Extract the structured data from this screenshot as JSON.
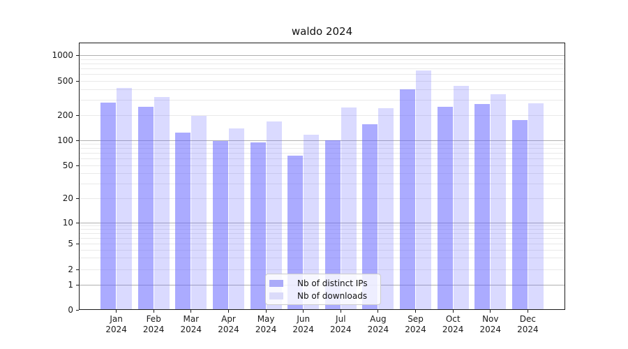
{
  "chart_data": {
    "type": "bar",
    "title": "waldo 2024",
    "categories": [
      "Jan",
      "Feb",
      "Mar",
      "Apr",
      "May",
      "Jun",
      "Jul",
      "Aug",
      "Sep",
      "Oct",
      "Nov",
      "Dec"
    ],
    "category_year": "2024",
    "series": [
      {
        "name": "Nb of distinct IPs",
        "color": "#aaaaf9",
        "values": [
          280,
          247,
          124,
          98,
          94,
          65,
          100,
          156,
          400,
          247,
          267,
          172
        ]
      },
      {
        "name": "Nb of downloads",
        "color": "#dbdbfa",
        "values": [
          418,
          322,
          196,
          137,
          167,
          117,
          243,
          239,
          668,
          438,
          350,
          272
        ]
      }
    ],
    "yscale": "symlog",
    "yticks": [
      0,
      1,
      2,
      5,
      10,
      20,
      50,
      100,
      200,
      500,
      1000
    ],
    "ylim": [
      0,
      1400
    ],
    "xlabel": "",
    "ylabel": "",
    "grid": "horizontal",
    "legend_position": "lower center"
  }
}
